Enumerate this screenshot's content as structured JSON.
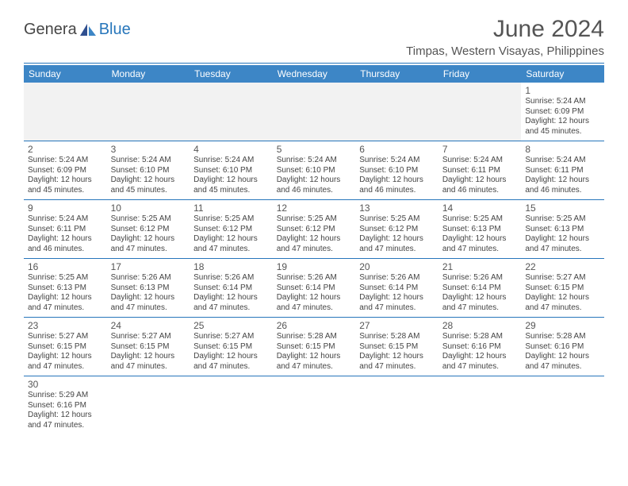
{
  "logo": {
    "text1": "Genera",
    "text2": "Blue"
  },
  "title": "June 2024",
  "subtitle": "Timpas, Western Visayas, Philippines",
  "colors": {
    "header_bg": "#3d86c6",
    "header_text": "#ffffff",
    "border": "#2776bb",
    "empty_bg": "#f2f2f2",
    "text": "#444444",
    "title_color": "#555555"
  },
  "weekdays": [
    "Sunday",
    "Monday",
    "Tuesday",
    "Wednesday",
    "Thursday",
    "Friday",
    "Saturday"
  ],
  "weeks": [
    [
      null,
      null,
      null,
      null,
      null,
      null,
      {
        "n": "1",
        "sr": "Sunrise: 5:24 AM",
        "ss": "Sunset: 6:09 PM",
        "d1": "Daylight: 12 hours",
        "d2": "and 45 minutes."
      }
    ],
    [
      {
        "n": "2",
        "sr": "Sunrise: 5:24 AM",
        "ss": "Sunset: 6:09 PM",
        "d1": "Daylight: 12 hours",
        "d2": "and 45 minutes."
      },
      {
        "n": "3",
        "sr": "Sunrise: 5:24 AM",
        "ss": "Sunset: 6:10 PM",
        "d1": "Daylight: 12 hours",
        "d2": "and 45 minutes."
      },
      {
        "n": "4",
        "sr": "Sunrise: 5:24 AM",
        "ss": "Sunset: 6:10 PM",
        "d1": "Daylight: 12 hours",
        "d2": "and 45 minutes."
      },
      {
        "n": "5",
        "sr": "Sunrise: 5:24 AM",
        "ss": "Sunset: 6:10 PM",
        "d1": "Daylight: 12 hours",
        "d2": "and 46 minutes."
      },
      {
        "n": "6",
        "sr": "Sunrise: 5:24 AM",
        "ss": "Sunset: 6:10 PM",
        "d1": "Daylight: 12 hours",
        "d2": "and 46 minutes."
      },
      {
        "n": "7",
        "sr": "Sunrise: 5:24 AM",
        "ss": "Sunset: 6:11 PM",
        "d1": "Daylight: 12 hours",
        "d2": "and 46 minutes."
      },
      {
        "n": "8",
        "sr": "Sunrise: 5:24 AM",
        "ss": "Sunset: 6:11 PM",
        "d1": "Daylight: 12 hours",
        "d2": "and 46 minutes."
      }
    ],
    [
      {
        "n": "9",
        "sr": "Sunrise: 5:24 AM",
        "ss": "Sunset: 6:11 PM",
        "d1": "Daylight: 12 hours",
        "d2": "and 46 minutes."
      },
      {
        "n": "10",
        "sr": "Sunrise: 5:25 AM",
        "ss": "Sunset: 6:12 PM",
        "d1": "Daylight: 12 hours",
        "d2": "and 47 minutes."
      },
      {
        "n": "11",
        "sr": "Sunrise: 5:25 AM",
        "ss": "Sunset: 6:12 PM",
        "d1": "Daylight: 12 hours",
        "d2": "and 47 minutes."
      },
      {
        "n": "12",
        "sr": "Sunrise: 5:25 AM",
        "ss": "Sunset: 6:12 PM",
        "d1": "Daylight: 12 hours",
        "d2": "and 47 minutes."
      },
      {
        "n": "13",
        "sr": "Sunrise: 5:25 AM",
        "ss": "Sunset: 6:12 PM",
        "d1": "Daylight: 12 hours",
        "d2": "and 47 minutes."
      },
      {
        "n": "14",
        "sr": "Sunrise: 5:25 AM",
        "ss": "Sunset: 6:13 PM",
        "d1": "Daylight: 12 hours",
        "d2": "and 47 minutes."
      },
      {
        "n": "15",
        "sr": "Sunrise: 5:25 AM",
        "ss": "Sunset: 6:13 PM",
        "d1": "Daylight: 12 hours",
        "d2": "and 47 minutes."
      }
    ],
    [
      {
        "n": "16",
        "sr": "Sunrise: 5:25 AM",
        "ss": "Sunset: 6:13 PM",
        "d1": "Daylight: 12 hours",
        "d2": "and 47 minutes."
      },
      {
        "n": "17",
        "sr": "Sunrise: 5:26 AM",
        "ss": "Sunset: 6:13 PM",
        "d1": "Daylight: 12 hours",
        "d2": "and 47 minutes."
      },
      {
        "n": "18",
        "sr": "Sunrise: 5:26 AM",
        "ss": "Sunset: 6:14 PM",
        "d1": "Daylight: 12 hours",
        "d2": "and 47 minutes."
      },
      {
        "n": "19",
        "sr": "Sunrise: 5:26 AM",
        "ss": "Sunset: 6:14 PM",
        "d1": "Daylight: 12 hours",
        "d2": "and 47 minutes."
      },
      {
        "n": "20",
        "sr": "Sunrise: 5:26 AM",
        "ss": "Sunset: 6:14 PM",
        "d1": "Daylight: 12 hours",
        "d2": "and 47 minutes."
      },
      {
        "n": "21",
        "sr": "Sunrise: 5:26 AM",
        "ss": "Sunset: 6:14 PM",
        "d1": "Daylight: 12 hours",
        "d2": "and 47 minutes."
      },
      {
        "n": "22",
        "sr": "Sunrise: 5:27 AM",
        "ss": "Sunset: 6:15 PM",
        "d1": "Daylight: 12 hours",
        "d2": "and 47 minutes."
      }
    ],
    [
      {
        "n": "23",
        "sr": "Sunrise: 5:27 AM",
        "ss": "Sunset: 6:15 PM",
        "d1": "Daylight: 12 hours",
        "d2": "and 47 minutes."
      },
      {
        "n": "24",
        "sr": "Sunrise: 5:27 AM",
        "ss": "Sunset: 6:15 PM",
        "d1": "Daylight: 12 hours",
        "d2": "and 47 minutes."
      },
      {
        "n": "25",
        "sr": "Sunrise: 5:27 AM",
        "ss": "Sunset: 6:15 PM",
        "d1": "Daylight: 12 hours",
        "d2": "and 47 minutes."
      },
      {
        "n": "26",
        "sr": "Sunrise: 5:28 AM",
        "ss": "Sunset: 6:15 PM",
        "d1": "Daylight: 12 hours",
        "d2": "and 47 minutes."
      },
      {
        "n": "27",
        "sr": "Sunrise: 5:28 AM",
        "ss": "Sunset: 6:15 PM",
        "d1": "Daylight: 12 hours",
        "d2": "and 47 minutes."
      },
      {
        "n": "28",
        "sr": "Sunrise: 5:28 AM",
        "ss": "Sunset: 6:16 PM",
        "d1": "Daylight: 12 hours",
        "d2": "and 47 minutes."
      },
      {
        "n": "29",
        "sr": "Sunrise: 5:28 AM",
        "ss": "Sunset: 6:16 PM",
        "d1": "Daylight: 12 hours",
        "d2": "and 47 minutes."
      }
    ],
    [
      {
        "n": "30",
        "sr": "Sunrise: 5:29 AM",
        "ss": "Sunset: 6:16 PM",
        "d1": "Daylight: 12 hours",
        "d2": "and 47 minutes."
      },
      null,
      null,
      null,
      null,
      null,
      null
    ]
  ]
}
